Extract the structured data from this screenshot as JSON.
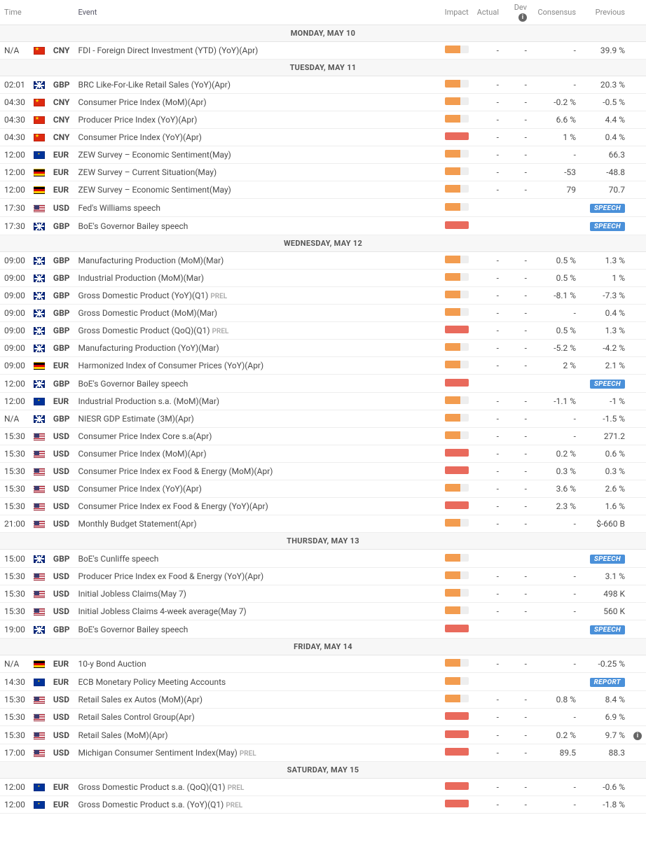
{
  "columns": {
    "time": "Time",
    "event": "Event",
    "impact": "Impact",
    "actual": "Actual",
    "dev": "Dev",
    "consensus": "Consensus",
    "previous": "Previous"
  },
  "colors": {
    "impact_medium": "#f39c4f",
    "impact_high": "#e96a5c",
    "badge_bg": "#4a90d9",
    "border": "#eeeeee",
    "dayhdr_bg": "#f7f7f7"
  },
  "rows": [
    {
      "type": "day",
      "label": "MONDAY, MAY 10"
    },
    {
      "time": "N/A",
      "flag": "cn",
      "cur": "CNY",
      "event": "FDI - Foreign Direct Investment (YTD) (YoY)(Apr)",
      "impact": 2,
      "actual": "-",
      "dev": "-",
      "cons": "-",
      "prev": "39.9 %"
    },
    {
      "type": "day",
      "label": "TUESDAY, MAY 11"
    },
    {
      "time": "02:01",
      "flag": "gb",
      "cur": "GBP",
      "event": "BRC Like-For-Like Retail Sales (YoY)(Apr)",
      "impact": 2,
      "actual": "-",
      "dev": "-",
      "cons": "-",
      "prev": "20.3 %"
    },
    {
      "time": "04:30",
      "flag": "cn",
      "cur": "CNY",
      "event": "Consumer Price Index (MoM)(Apr)",
      "impact": 2,
      "actual": "-",
      "dev": "-",
      "cons": "-0.2 %",
      "prev": "-0.5 %"
    },
    {
      "time": "04:30",
      "flag": "cn",
      "cur": "CNY",
      "event": "Producer Price Index (YoY)(Apr)",
      "impact": 2,
      "actual": "-",
      "dev": "-",
      "cons": "6.6 %",
      "prev": "4.4 %"
    },
    {
      "time": "04:30",
      "flag": "cn",
      "cur": "CNY",
      "event": "Consumer Price Index (YoY)(Apr)",
      "impact": 3,
      "actual": "-",
      "dev": "-",
      "cons": "1 %",
      "prev": "0.4 %"
    },
    {
      "time": "12:00",
      "flag": "eu",
      "cur": "EUR",
      "event": "ZEW Survey – Economic Sentiment(May)",
      "impact": 2,
      "actual": "-",
      "dev": "-",
      "cons": "-",
      "prev": "66.3"
    },
    {
      "time": "12:00",
      "flag": "de",
      "cur": "EUR",
      "event": "ZEW Survey – Current Situation(May)",
      "impact": 2,
      "actual": "-",
      "dev": "-",
      "cons": "-53",
      "prev": "-48.8"
    },
    {
      "time": "12:00",
      "flag": "de",
      "cur": "EUR",
      "event": "ZEW Survey – Economic Sentiment(May)",
      "impact": 2,
      "actual": "-",
      "dev": "-",
      "cons": "79",
      "prev": "70.7"
    },
    {
      "time": "17:30",
      "flag": "us",
      "cur": "USD",
      "event": "Fed's Williams speech",
      "impact": 2,
      "badge": "SPEECH"
    },
    {
      "time": "17:30",
      "flag": "gb",
      "cur": "GBP",
      "event": "BoE's Governor Bailey speech",
      "impact": 3,
      "badge": "SPEECH"
    },
    {
      "type": "day",
      "label": "WEDNESDAY, MAY 12"
    },
    {
      "time": "09:00",
      "flag": "gb",
      "cur": "GBP",
      "event": "Manufacturing Production (MoM)(Mar)",
      "impact": 2,
      "actual": "-",
      "dev": "-",
      "cons": "0.5 %",
      "prev": "1.3 %"
    },
    {
      "time": "09:00",
      "flag": "gb",
      "cur": "GBP",
      "event": "Industrial Production (MoM)(Mar)",
      "impact": 2,
      "actual": "-",
      "dev": "-",
      "cons": "0.5 %",
      "prev": "1 %"
    },
    {
      "time": "09:00",
      "flag": "gb",
      "cur": "GBP",
      "event": "Gross Domestic Product (YoY)(Q1)",
      "prel": true,
      "impact": 2,
      "actual": "-",
      "dev": "-",
      "cons": "-8.1 %",
      "prev": "-7.3 %"
    },
    {
      "time": "09:00",
      "flag": "gb",
      "cur": "GBP",
      "event": "Gross Domestic Product (MoM)(Mar)",
      "impact": 2,
      "actual": "-",
      "dev": "-",
      "cons": "-",
      "prev": "0.4 %"
    },
    {
      "time": "09:00",
      "flag": "gb",
      "cur": "GBP",
      "event": "Gross Domestic Product (QoQ)(Q1)",
      "prel": true,
      "impact": 3,
      "actual": "-",
      "dev": "-",
      "cons": "0.5 %",
      "prev": "1.3 %"
    },
    {
      "time": "09:00",
      "flag": "gb",
      "cur": "GBP",
      "event": "Manufacturing Production (YoY)(Mar)",
      "impact": 2,
      "actual": "-",
      "dev": "-",
      "cons": "-5.2 %",
      "prev": "-4.2 %"
    },
    {
      "time": "09:00",
      "flag": "de",
      "cur": "EUR",
      "event": "Harmonized Index of Consumer Prices (YoY)(Apr)",
      "impact": 2,
      "actual": "-",
      "dev": "-",
      "cons": "2 %",
      "prev": "2.1 %"
    },
    {
      "time": "12:00",
      "flag": "gb",
      "cur": "GBP",
      "event": "BoE's Governor Bailey speech",
      "impact": 3,
      "badge": "SPEECH"
    },
    {
      "time": "12:00",
      "flag": "eu",
      "cur": "EUR",
      "event": "Industrial Production s.a. (MoM)(Mar)",
      "impact": 2,
      "actual": "-",
      "dev": "-",
      "cons": "-1.1 %",
      "prev": "-1 %"
    },
    {
      "time": "N/A",
      "flag": "gb",
      "cur": "GBP",
      "event": "NIESR GDP Estimate (3M)(Apr)",
      "impact": 2,
      "actual": "-",
      "dev": "-",
      "cons": "-",
      "prev": "-1.5 %"
    },
    {
      "time": "15:30",
      "flag": "us",
      "cur": "USD",
      "event": "Consumer Price Index Core s.a(Apr)",
      "impact": 2,
      "actual": "-",
      "dev": "-",
      "cons": "-",
      "prev": "271.2"
    },
    {
      "time": "15:30",
      "flag": "us",
      "cur": "USD",
      "event": "Consumer Price Index (MoM)(Apr)",
      "impact": 3,
      "actual": "-",
      "dev": "-",
      "cons": "0.2 %",
      "prev": "0.6 %"
    },
    {
      "time": "15:30",
      "flag": "us",
      "cur": "USD",
      "event": "Consumer Price Index ex Food & Energy (MoM)(Apr)",
      "impact": 3,
      "actual": "-",
      "dev": "-",
      "cons": "0.3 %",
      "prev": "0.3 %"
    },
    {
      "time": "15:30",
      "flag": "us",
      "cur": "USD",
      "event": "Consumer Price Index (YoY)(Apr)",
      "impact": 2,
      "actual": "-",
      "dev": "-",
      "cons": "3.6 %",
      "prev": "2.6 %"
    },
    {
      "time": "15:30",
      "flag": "us",
      "cur": "USD",
      "event": "Consumer Price Index ex Food & Energy (YoY)(Apr)",
      "impact": 3,
      "actual": "-",
      "dev": "-",
      "cons": "2.3 %",
      "prev": "1.6 %"
    },
    {
      "time": "21:00",
      "flag": "us",
      "cur": "USD",
      "event": "Monthly Budget Statement(Apr)",
      "impact": 2,
      "actual": "-",
      "dev": "-",
      "cons": "-",
      "prev": "$-660 B"
    },
    {
      "type": "day",
      "label": "THURSDAY, MAY 13"
    },
    {
      "time": "15:00",
      "flag": "gb",
      "cur": "GBP",
      "event": "BoE's Cunliffe speech",
      "impact": 2,
      "badge": "SPEECH"
    },
    {
      "time": "15:30",
      "flag": "us",
      "cur": "USD",
      "event": "Producer Price Index ex Food & Energy (YoY)(Apr)",
      "impact": 2,
      "actual": "-",
      "dev": "-",
      "cons": "-",
      "prev": "3.1 %"
    },
    {
      "time": "15:30",
      "flag": "us",
      "cur": "USD",
      "event": "Initial Jobless Claims(May 7)",
      "impact": 2,
      "actual": "-",
      "dev": "-",
      "cons": "-",
      "prev": "498 K"
    },
    {
      "time": "15:30",
      "flag": "us",
      "cur": "USD",
      "event": "Initial Jobless Claims 4-week average(May 7)",
      "impact": 2,
      "actual": "-",
      "dev": "-",
      "cons": "-",
      "prev": "560 K"
    },
    {
      "time": "19:00",
      "flag": "gb",
      "cur": "GBP",
      "event": "BoE's Governor Bailey speech",
      "impact": 3,
      "badge": "SPEECH"
    },
    {
      "type": "day",
      "label": "FRIDAY, MAY 14"
    },
    {
      "time": "N/A",
      "flag": "de",
      "cur": "EUR",
      "event": "10-y Bond Auction",
      "impact": 2,
      "actual": "-",
      "dev": "-",
      "cons": "-",
      "prev": "-0.25 %"
    },
    {
      "time": "14:30",
      "flag": "eu",
      "cur": "EUR",
      "event": "ECB Monetary Policy Meeting Accounts",
      "impact": 2,
      "badge": "REPORT"
    },
    {
      "time": "15:30",
      "flag": "us",
      "cur": "USD",
      "event": "Retail Sales ex Autos (MoM)(Apr)",
      "impact": 2,
      "actual": "-",
      "dev": "-",
      "cons": "0.8 %",
      "prev": "8.4 %"
    },
    {
      "time": "15:30",
      "flag": "us",
      "cur": "USD",
      "event": "Retail Sales Control Group(Apr)",
      "impact": 3,
      "actual": "-",
      "dev": "-",
      "cons": "-",
      "prev": "6.9 %"
    },
    {
      "time": "15:30",
      "flag": "us",
      "cur": "USD",
      "event": "Retail Sales (MoM)(Apr)",
      "impact": 3,
      "actual": "-",
      "dev": "-",
      "cons": "0.2 %",
      "prev": "9.7 %",
      "note": true
    },
    {
      "time": "17:00",
      "flag": "us",
      "cur": "USD",
      "event": "Michigan Consumer Sentiment Index(May)",
      "prel": true,
      "impact": 3,
      "actual": "-",
      "dev": "-",
      "cons": "89.5",
      "prev": "88.3"
    },
    {
      "type": "day",
      "label": "SATURDAY, MAY 15"
    },
    {
      "time": "12:00",
      "flag": "eu",
      "cur": "EUR",
      "event": "Gross Domestic Product s.a. (QoQ)(Q1)",
      "prel": true,
      "impact": 3,
      "actual": "-",
      "dev": "-",
      "cons": "-",
      "prev": "-0.6 %"
    },
    {
      "time": "12:00",
      "flag": "eu",
      "cur": "EUR",
      "event": "Gross Domestic Product s.a. (YoY)(Q1)",
      "prel": true,
      "impact": 3,
      "actual": "-",
      "dev": "-",
      "cons": "-",
      "prev": "-1.8 %"
    }
  ]
}
